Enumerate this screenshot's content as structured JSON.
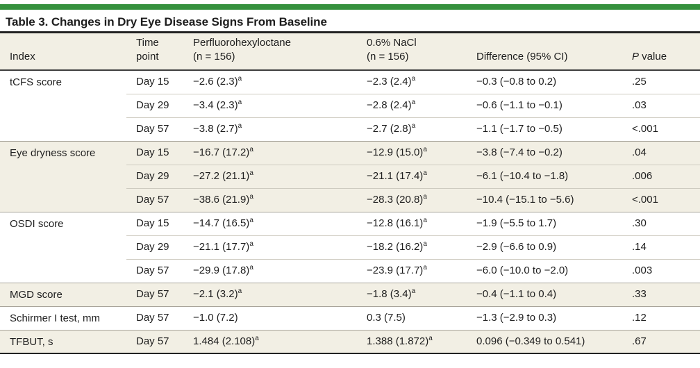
{
  "style": {
    "accent_color": "#36913e",
    "shaded_row_color": "#f2efe4",
    "rule_color": "#222222"
  },
  "title": "Table 3. Changes in Dry Eye Disease Signs From Baseline",
  "columns": {
    "index": "Index",
    "time_point": "Time\npoint",
    "pfho": "Perfluorohexyloctane\n(n = 156)",
    "nacl": "0.6% NaCl\n(n = 156)",
    "difference": "Difference (95% CI)",
    "p_value_italic": "P",
    "p_value_rest": " value"
  },
  "groups": [
    {
      "index": "tCFS score",
      "shaded": false,
      "rows": [
        {
          "time": "Day 15",
          "pfho": "−2.6 (2.3)",
          "pfho_sup": "a",
          "nacl": "−2.3 (2.4)",
          "nacl_sup": "a",
          "diff": "−0.3 (−0.8 to 0.2)",
          "p": ".25"
        },
        {
          "time": "Day 29",
          "pfho": "−3.4 (2.3)",
          "pfho_sup": "a",
          "nacl": "−2.8 (2.4)",
          "nacl_sup": "a",
          "diff": "−0.6 (−1.1 to −0.1)",
          "p": ".03"
        },
        {
          "time": "Day 57",
          "pfho": "−3.8 (2.7)",
          "pfho_sup": "a",
          "nacl": "−2.7 (2.8)",
          "nacl_sup": "a",
          "diff": "−1.1 (−1.7 to −0.5)",
          "p": "<.001"
        }
      ]
    },
    {
      "index": "Eye dryness score",
      "shaded": true,
      "rows": [
        {
          "time": "Day 15",
          "pfho": "−16.7 (17.2)",
          "pfho_sup": "a",
          "nacl": "−12.9 (15.0)",
          "nacl_sup": "a",
          "diff": "−3.8 (−7.4 to −0.2)",
          "p": ".04"
        },
        {
          "time": "Day 29",
          "pfho": "−27.2 (21.1)",
          "pfho_sup": "a",
          "nacl": "−21.1 (17.4)",
          "nacl_sup": "a",
          "diff": "−6.1 (−10.4 to −1.8)",
          "p": ".006"
        },
        {
          "time": "Day 57",
          "pfho": "−38.6 (21.9)",
          "pfho_sup": "a",
          "nacl": "−28.3 (20.8)",
          "nacl_sup": "a",
          "diff": "−10.4 (−15.1 to −5.6)",
          "p": "<.001"
        }
      ]
    },
    {
      "index": "OSDI score",
      "shaded": false,
      "rows": [
        {
          "time": "Day 15",
          "pfho": "−14.7 (16.5)",
          "pfho_sup": "a",
          "nacl": "−12.8 (16.1)",
          "nacl_sup": "a",
          "diff": "−1.9 (−5.5 to 1.7)",
          "p": ".30"
        },
        {
          "time": "Day 29",
          "pfho": "−21.1 (17.7)",
          "pfho_sup": "a",
          "nacl": "−18.2 (16.2)",
          "nacl_sup": "a",
          "diff": "−2.9 (−6.6 to 0.9)",
          "p": ".14"
        },
        {
          "time": "Day 57",
          "pfho": "−29.9 (17.8)",
          "pfho_sup": "a",
          "nacl": "−23.9 (17.7)",
          "nacl_sup": "a",
          "diff": "−6.0 (−10.0 to −2.0)",
          "p": ".003"
        }
      ]
    },
    {
      "index": "MGD score",
      "shaded": true,
      "rows": [
        {
          "time": "Day 57",
          "pfho": "−2.1 (3.2)",
          "pfho_sup": "a",
          "nacl": "−1.8 (3.4)",
          "nacl_sup": "a",
          "diff": "−0.4 (−1.1 to 0.4)",
          "p": ".33"
        }
      ]
    },
    {
      "index": "Schirmer I test, mm",
      "shaded": false,
      "rows": [
        {
          "time": "Day 57",
          "pfho": "−1.0 (7.2)",
          "nacl": "0.3 (7.5)",
          "diff": "−1.3 (−2.9 to 0.3)",
          "p": ".12"
        }
      ]
    },
    {
      "index": "TFBUT, s",
      "shaded": true,
      "rows": [
        {
          "time": "Day 57",
          "pfho": "1.484 (2.108)",
          "pfho_sup": "a",
          "nacl": "1.388 (1.872)",
          "nacl_sup": "a",
          "diff": "0.096 (−0.349 to 0.541)",
          "p": ".67"
        }
      ]
    }
  ]
}
